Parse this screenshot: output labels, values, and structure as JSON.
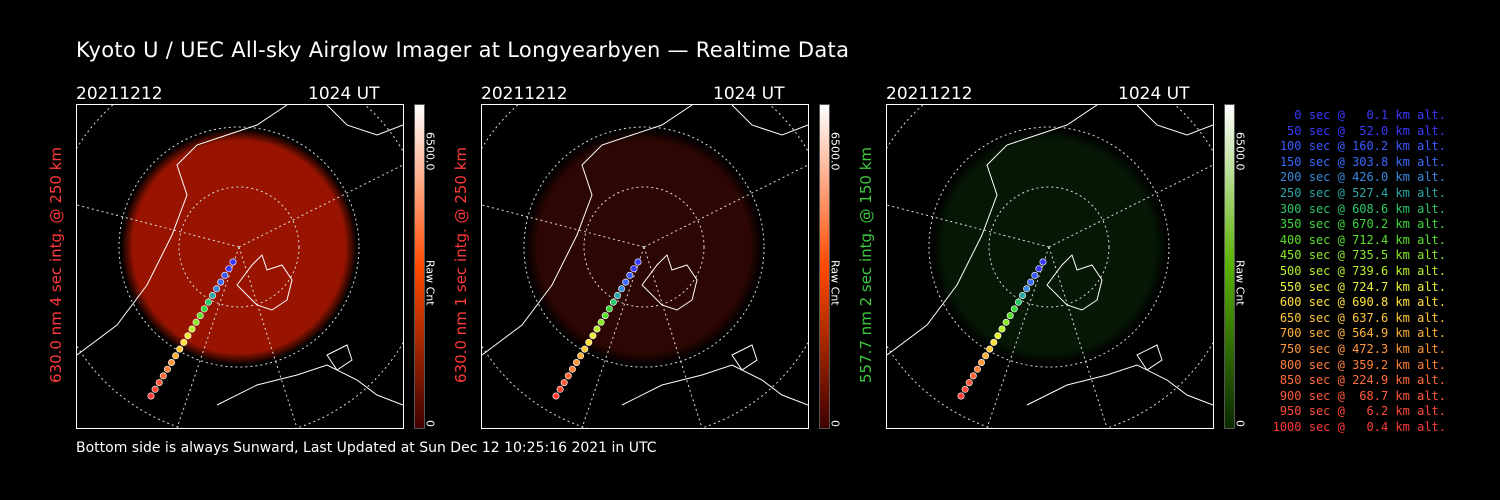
{
  "title": "Kyoto U / UEC All-sky Airglow Imager at Longyearbyen — Realtime Data",
  "footer": "Bottom side is always Sunward, Last Updated at Sun Dec 12 10:25:16 2021 in UTC",
  "panels": [
    {
      "date": "20211212",
      "time": "1024 UT",
      "ylabel": "630.0 nm 4 sec intg. @ 250 km",
      "ylabel_color": "#ff3a3a",
      "cbar_max": "6500.0",
      "cbar_min": "0",
      "cbar_unit": "Raw Cnt",
      "glow_color": "#b41800",
      "glow_level": 0.85,
      "bar_top": "#ffffff",
      "bar_mid": "#ff4a00",
      "bar_bot": "#400000"
    },
    {
      "date": "20211212",
      "time": "1024 UT",
      "ylabel": "630.0 nm 1 sec intg. @ 250 km",
      "ylabel_color": "#ff3a3a",
      "cbar_max": "6500.0",
      "cbar_min": "0",
      "cbar_unit": "Raw Cnt",
      "glow_color": "#4a0a04",
      "glow_level": 0.6,
      "bar_top": "#ffffff",
      "bar_mid": "#ff4a00",
      "bar_bot": "#400000"
    },
    {
      "date": "20211212",
      "time": "1024 UT",
      "ylabel": "557.7 nm 2 sec intg. @ 150 km",
      "ylabel_color": "#3ec83e",
      "cbar_max": "6500.0",
      "cbar_min": "0",
      "cbar_unit": "Raw Cnt",
      "glow_color": "#0c2e0a",
      "glow_level": 0.5,
      "bar_top": "#ffffff",
      "bar_mid": "#58b000",
      "bar_bot": "#0a2a00"
    }
  ],
  "legend": [
    {
      "text": "0 sec @   0.1 km alt.",
      "color": "#3a3aff"
    },
    {
      "text": "50 sec @  52.0 km alt.",
      "color": "#3a3aff"
    },
    {
      "text": "100 sec @ 160.2 km alt.",
      "color": "#3a5aff"
    },
    {
      "text": "150 sec @ 303.8 km alt.",
      "color": "#3a6aff"
    },
    {
      "text": "200 sec @ 426.0 km alt.",
      "color": "#3a8ade"
    },
    {
      "text": "250 sec @ 527.4 km alt.",
      "color": "#2aa8a8"
    },
    {
      "text": "300 sec @ 608.6 km alt.",
      "color": "#2ac86a"
    },
    {
      "text": "350 sec @ 670.2 km alt.",
      "color": "#3ad83a"
    },
    {
      "text": "400 sec @ 712.4 km alt.",
      "color": "#5ae02a"
    },
    {
      "text": "450 sec @ 735.5 km alt.",
      "color": "#8ae82a"
    },
    {
      "text": "500 sec @ 739.6 km alt.",
      "color": "#b8f02a"
    },
    {
      "text": "550 sec @ 724.7 km alt.",
      "color": "#e8f03a"
    },
    {
      "text": "600 sec @ 690.8 km alt.",
      "color": "#ffe03a"
    },
    {
      "text": "650 sec @ 637.6 km alt.",
      "color": "#ffc83a"
    },
    {
      "text": "700 sec @ 564.9 km alt.",
      "color": "#ffb03a"
    },
    {
      "text": "750 sec @ 472.3 km alt.",
      "color": "#ff983a"
    },
    {
      "text": "800 sec @ 359.2 km alt.",
      "color": "#ff803a"
    },
    {
      "text": "850 sec @ 224.9 km alt.",
      "color": "#ff6a3a"
    },
    {
      "text": "900 sec @  68.7 km alt.",
      "color": "#ff583a"
    },
    {
      "text": "950 sec @   6.2 km alt.",
      "color": "#ff4a3a"
    },
    {
      "text": "1000 sec @   0.4 km alt.",
      "color": "#ff3a3a"
    }
  ]
}
